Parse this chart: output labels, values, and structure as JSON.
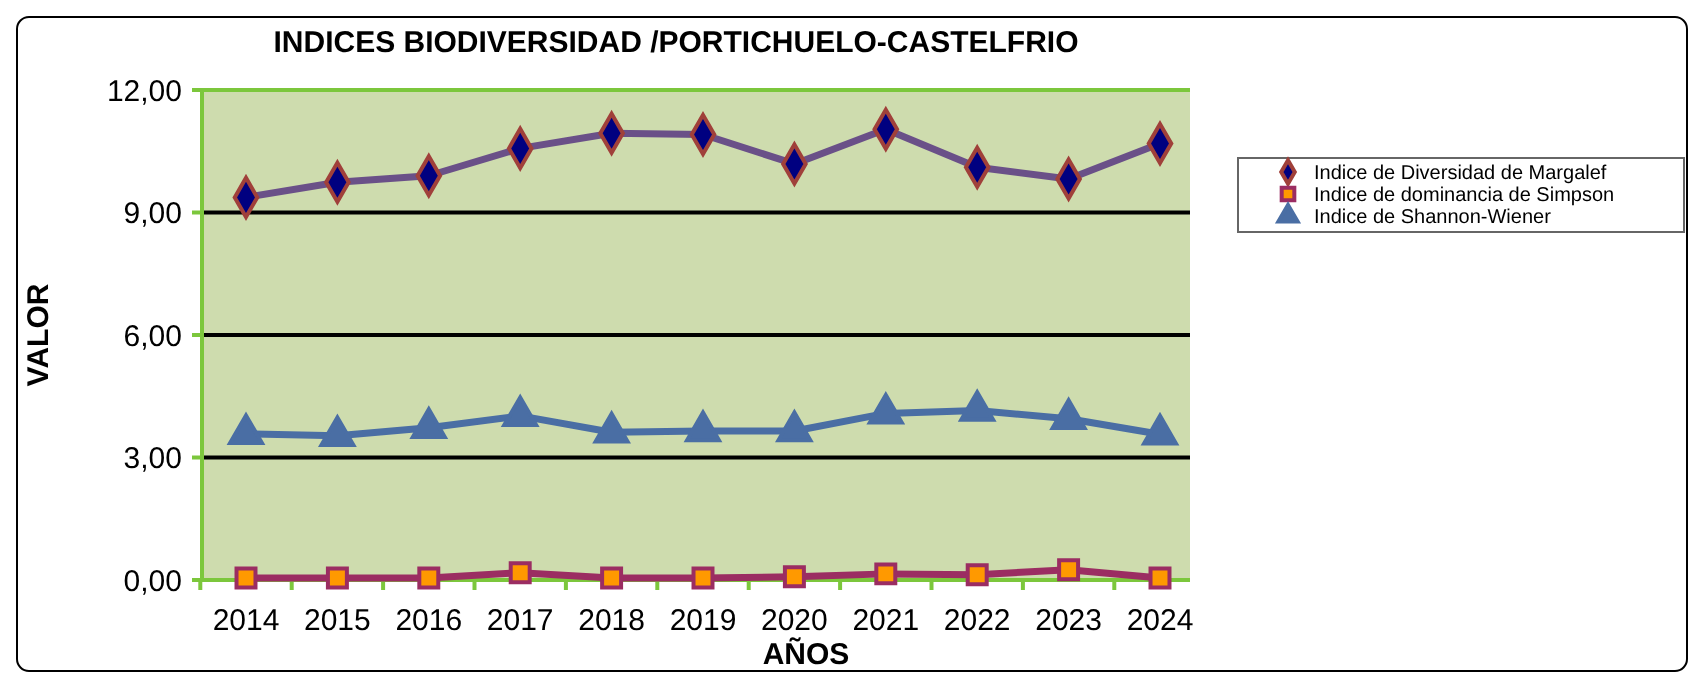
{
  "chart_data": {
    "type": "line",
    "title": "INDICES BIODIVERSIDAD /PORTICHUELO-CASTELFRIO",
    "xlabel": "AÑOS",
    "ylabel": "VALOR",
    "categories": [
      "2014",
      "2015",
      "2016",
      "2017",
      "2018",
      "2019",
      "2020",
      "2021",
      "2022",
      "2023",
      "2024"
    ],
    "series": [
      {
        "name": "Indice de Diversidad de Margalef",
        "color": "#6a5088",
        "marker": "diamond",
        "values": [
          9.37,
          9.74,
          9.9,
          10.57,
          10.94,
          10.91,
          10.19,
          11.04,
          10.11,
          9.82,
          10.69
        ]
      },
      {
        "name": "Indice de dominancia de Simpson",
        "color": "#9b2d62",
        "marker": "square",
        "values": [
          0.05,
          0.05,
          0.05,
          0.18,
          0.05,
          0.05,
          0.08,
          0.15,
          0.13,
          0.25,
          0.05
        ]
      },
      {
        "name": "Indice de Shannon-Wiener",
        "color": "#4a6ea4",
        "marker": "triangle",
        "values": [
          3.58,
          3.53,
          3.73,
          4.02,
          3.62,
          3.65,
          3.65,
          4.08,
          4.15,
          3.95,
          3.57
        ]
      }
    ],
    "ylim": [
      0,
      12
    ],
    "yticks": [
      {
        "value": 0,
        "label": "0,00"
      },
      {
        "value": 3,
        "label": "3,00"
      },
      {
        "value": 6,
        "label": "6,00"
      },
      {
        "value": 9,
        "label": "9,00"
      },
      {
        "value": 12,
        "label": "12,00"
      }
    ],
    "grid": "y",
    "legend": "right"
  }
}
